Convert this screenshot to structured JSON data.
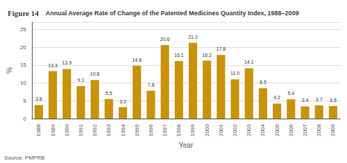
{
  "chart_data": {
    "type": "bar",
    "title": "Figure 14",
    "subtitle": "Annual Average Rate of Change of the Patented Medicines Quantity Index, 1988–2009",
    "xlabel": "Year",
    "ylabel": "%",
    "annotations": [
      "Source: PMPRB"
    ],
    "categories": [
      "1988",
      "1989",
      "1990",
      "1991",
      "1992",
      "1993",
      "1994",
      "1995",
      "1996",
      "1997",
      "1998",
      "1999",
      "2000",
      "2001",
      "2002",
      "2003",
      "2004",
      "2005",
      "2006",
      "2007",
      "2008",
      "2009"
    ],
    "values": [
      3.8,
      13.3,
      13.9,
      9.1,
      10.8,
      5.5,
      3.2,
      14.8,
      7.8,
      20.6,
      16.1,
      21.2,
      16.2,
      17.8,
      11.0,
      14.1,
      8.5,
      4.2,
      5.4,
      3.4,
      3.7,
      3.5
    ],
    "value_labels": [
      "3.8",
      "13.3",
      "13.9",
      "9.1",
      "10.8",
      "5.5",
      "3.2",
      "14.8",
      "7.8",
      "20.6",
      "16.1",
      "21.2",
      "16.2",
      "17.8",
      "11.0",
      "14.1",
      "8.5",
      "4.2",
      "5.4",
      "3.4",
      "3.7",
      "3.5"
    ],
    "color": "#C8920A",
    "ylim": [
      0,
      27
    ],
    "yticks": [
      0,
      5,
      10,
      15,
      20,
      25
    ],
    "grid": true,
    "data_labels": true
  }
}
